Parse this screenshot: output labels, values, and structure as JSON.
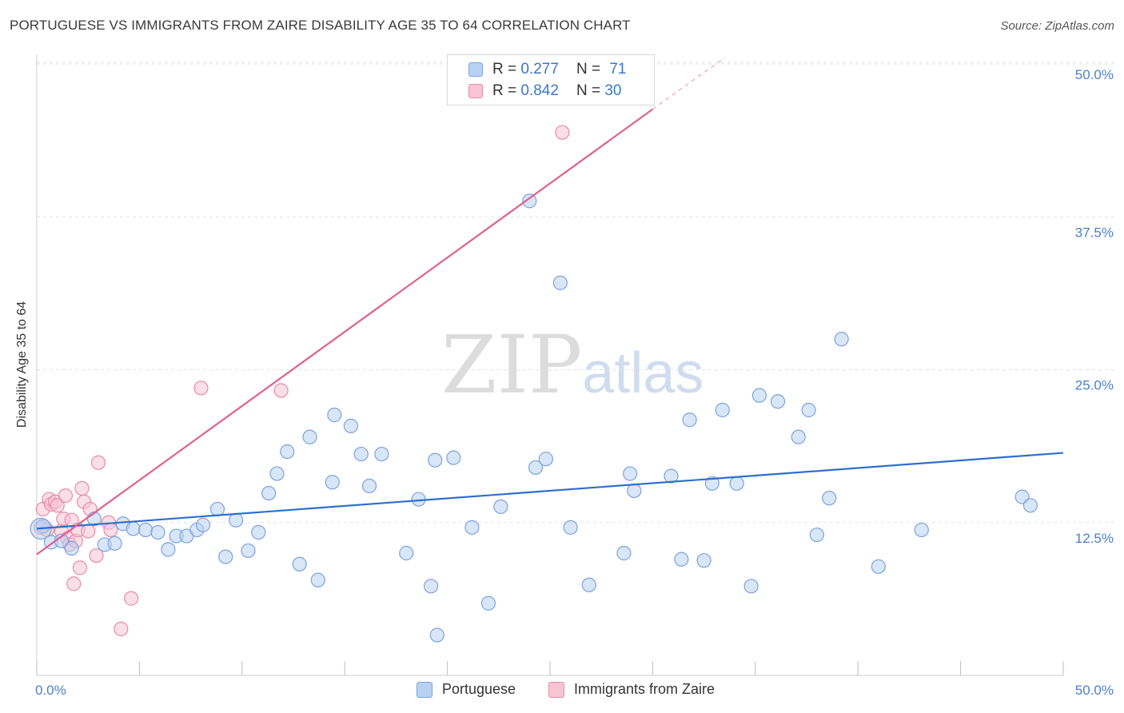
{
  "title": "PORTUGUESE VS IMMIGRANTS FROM ZAIRE DISABILITY AGE 35 TO 64 CORRELATION CHART",
  "source": "Source: ZipAtlas.com",
  "watermark": {
    "part1": "ZIP",
    "part2": "atlas"
  },
  "legend": {
    "rows": [
      {
        "r_label": "R =",
        "r_value": "0.277",
        "n_label": "N =",
        "n_value": "71"
      },
      {
        "r_label": "R =",
        "r_value": "0.842",
        "n_label": "N =",
        "n_value": "30"
      }
    ]
  },
  "bottom_legend": [
    "Portuguese",
    "Immigrants from Zaire"
  ],
  "colors": {
    "blue_fill": "#b9d2f2",
    "blue_stroke": "#7aa3dc",
    "blue_line": "#2d6fcc",
    "pink_fill": "#f7c4d3",
    "pink_stroke": "#e88aa8",
    "pink_line": "#e0608c",
    "grid": "#e3e3e3",
    "tick_text": "#4a7fcc"
  },
  "chart_data": {
    "type": "scatter",
    "title": "PORTUGUESE VS IMMIGRANTS FROM ZAIRE DISABILITY AGE 35 TO 64 CORRELATION CHART",
    "xlabel": "",
    "ylabel": "Disability Age 35 to 64",
    "xlim": [
      0,
      50
    ],
    "ylim": [
      0,
      50
    ],
    "x_tick_labels": [
      "0.0%",
      "50.0%"
    ],
    "y_tick_labels": [
      "12.5%",
      "25.0%",
      "37.5%",
      "50.0%"
    ],
    "y_ticks": [
      12.5,
      25.0,
      37.5,
      50.0
    ],
    "grid": true,
    "series": [
      {
        "name": "Portuguese",
        "r": 0.277,
        "n": 71,
        "trend": {
          "x": [
            0,
            50
          ],
          "y": [
            12.0,
            18.2
          ]
        },
        "points": [
          [
            0.3,
            12.2
          ],
          [
            0.7,
            10.9
          ],
          [
            1.2,
            11.0
          ],
          [
            1.7,
            10.4
          ],
          [
            2.8,
            12.8
          ],
          [
            3.3,
            10.7
          ],
          [
            3.8,
            10.8
          ],
          [
            4.2,
            12.4
          ],
          [
            4.7,
            12.0
          ],
          [
            5.3,
            11.9
          ],
          [
            5.9,
            11.7
          ],
          [
            6.4,
            10.3
          ],
          [
            6.8,
            11.4
          ],
          [
            7.3,
            11.4
          ],
          [
            7.8,
            11.9
          ],
          [
            8.1,
            12.3
          ],
          [
            8.8,
            13.6
          ],
          [
            9.2,
            9.7
          ],
          [
            9.7,
            12.7
          ],
          [
            10.3,
            10.2
          ],
          [
            10.8,
            11.7
          ],
          [
            11.3,
            14.9
          ],
          [
            11.7,
            16.5
          ],
          [
            12.2,
            18.3
          ],
          [
            12.8,
            9.1
          ],
          [
            13.3,
            19.5
          ],
          [
            13.7,
            7.8
          ],
          [
            14.4,
            15.8
          ],
          [
            14.5,
            21.3
          ],
          [
            15.3,
            20.4
          ],
          [
            15.8,
            18.1
          ],
          [
            16.2,
            15.5
          ],
          [
            16.8,
            18.1
          ],
          [
            18.0,
            10.0
          ],
          [
            18.6,
            14.4
          ],
          [
            19.2,
            7.3
          ],
          [
            19.4,
            17.6
          ],
          [
            19.5,
            3.3
          ],
          [
            20.3,
            17.8
          ],
          [
            21.2,
            12.1
          ],
          [
            22.0,
            5.9
          ],
          [
            22.6,
            13.8
          ],
          [
            24.0,
            38.8
          ],
          [
            24.3,
            17.0
          ],
          [
            24.8,
            17.7
          ],
          [
            25.5,
            32.1
          ],
          [
            26.0,
            12.1
          ],
          [
            26.9,
            7.4
          ],
          [
            28.6,
            10.0
          ],
          [
            28.9,
            16.5
          ],
          [
            29.1,
            15.1
          ],
          [
            30.9,
            16.3
          ],
          [
            31.4,
            9.5
          ],
          [
            31.8,
            20.9
          ],
          [
            32.5,
            9.4
          ],
          [
            32.9,
            15.7
          ],
          [
            33.4,
            21.7
          ],
          [
            34.1,
            15.7
          ],
          [
            34.8,
            7.3
          ],
          [
            35.2,
            22.9
          ],
          [
            36.1,
            22.4
          ],
          [
            37.1,
            19.5
          ],
          [
            37.6,
            21.7
          ],
          [
            38.0,
            11.5
          ],
          [
            38.6,
            14.5
          ],
          [
            39.2,
            27.5
          ],
          [
            41.0,
            8.9
          ],
          [
            43.1,
            11.9
          ],
          [
            48.0,
            14.6
          ],
          [
            48.4,
            13.9
          ],
          [
            0.2,
            12.0
          ]
        ]
      },
      {
        "name": "Immigrants from Zaire",
        "r": 0.842,
        "n": 30,
        "trend": {
          "x": [
            0,
            30
          ],
          "y": [
            9.9,
            46.3
          ]
        },
        "trend_dashed": {
          "x": [
            30,
            33.5
          ],
          "y": [
            46.3,
            50.5
          ]
        },
        "points": [
          [
            0.2,
            12.1
          ],
          [
            0.3,
            13.6
          ],
          [
            0.5,
            11.9
          ],
          [
            0.6,
            14.4
          ],
          [
            0.7,
            14.0
          ],
          [
            0.9,
            14.2
          ],
          [
            1.0,
            13.9
          ],
          [
            1.2,
            11.8
          ],
          [
            1.3,
            12.8
          ],
          [
            1.4,
            14.7
          ],
          [
            1.5,
            11.2
          ],
          [
            1.6,
            10.7
          ],
          [
            1.7,
            12.7
          ],
          [
            1.8,
            7.5
          ],
          [
            1.9,
            11.0
          ],
          [
            2.0,
            11.9
          ],
          [
            2.1,
            8.8
          ],
          [
            2.2,
            15.3
          ],
          [
            2.3,
            14.2
          ],
          [
            2.5,
            11.8
          ],
          [
            2.6,
            13.6
          ],
          [
            2.9,
            9.8
          ],
          [
            3.0,
            17.4
          ],
          [
            3.5,
            12.5
          ],
          [
            3.6,
            11.9
          ],
          [
            4.1,
            3.8
          ],
          [
            4.6,
            6.3
          ],
          [
            8.0,
            23.5
          ],
          [
            11.9,
            23.3
          ],
          [
            25.6,
            44.4
          ]
        ]
      }
    ]
  }
}
